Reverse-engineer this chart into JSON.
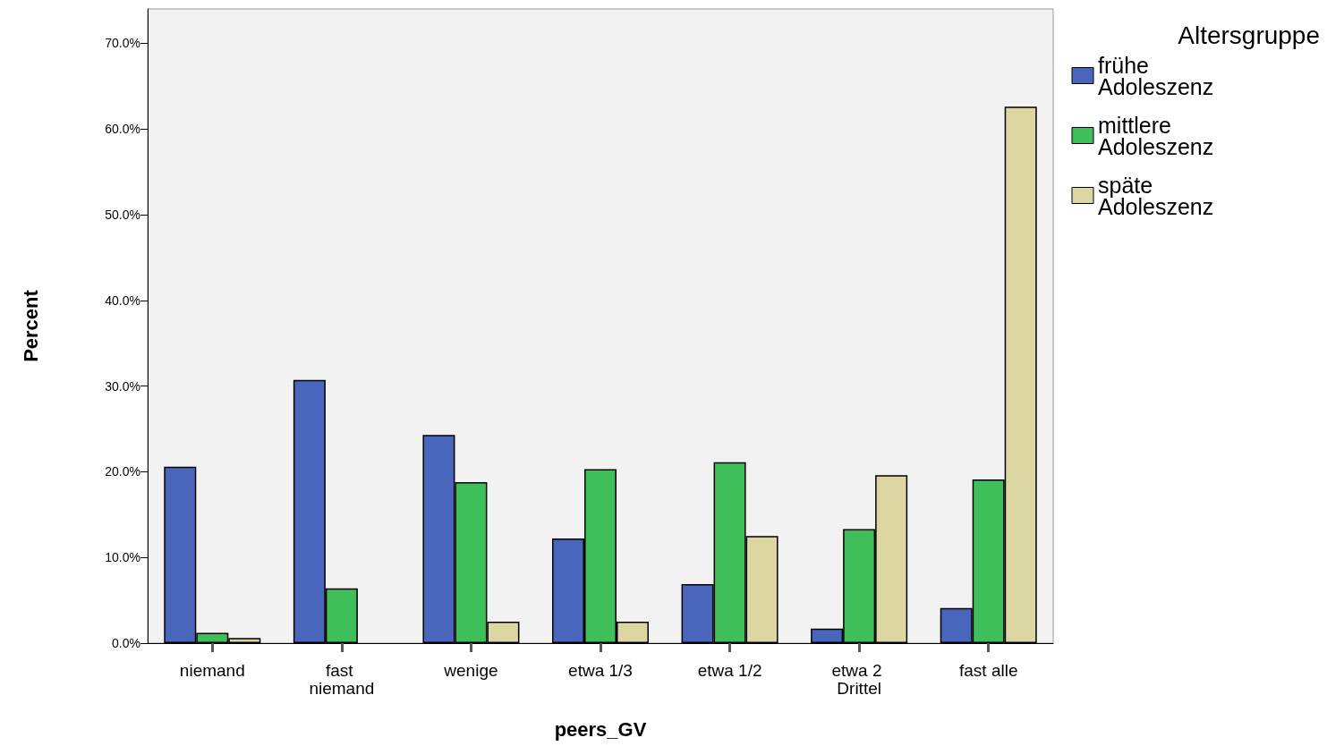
{
  "chart_data": {
    "type": "bar",
    "xlabel": "peers_GV",
    "ylabel": "Percent",
    "legend_title": "Altersgruppe",
    "legend": "right",
    "categories": [
      "niemand",
      "fast niemand",
      "wenige",
      "etwa 1/3",
      "etwa 1/2",
      "etwa 2 Drittel",
      "fast alle"
    ],
    "series": [
      {
        "name": "frühe Adoleszenz",
        "color": "#4a66bc",
        "values": [
          20.6,
          30.7,
          24.3,
          12.2,
          6.9,
          1.7,
          4.1
        ]
      },
      {
        "name": "mittlere Adoleszenz",
        "color": "#3fbf5a",
        "values": [
          1.2,
          6.4,
          18.8,
          20.3,
          21.1,
          13.3,
          19.1
        ]
      },
      {
        "name": "späte Adoleszenz",
        "color": "#dbd6a2",
        "values": [
          0.6,
          null,
          2.5,
          2.5,
          12.5,
          19.6,
          62.6
        ]
      }
    ],
    "ylim": [
      0,
      74
    ],
    "yticks": [
      {
        "value": 0,
        "label": "0.0%"
      },
      {
        "value": 10,
        "label": "10.0%"
      },
      {
        "value": 20,
        "label": "20.0%"
      },
      {
        "value": 30,
        "label": "30.0%"
      },
      {
        "value": 40,
        "label": "40.0%"
      },
      {
        "value": 50,
        "label": "50.0%"
      },
      {
        "value": 60,
        "label": "60.0%"
      },
      {
        "value": 70,
        "label": "70.0%"
      }
    ],
    "grid": false
  }
}
